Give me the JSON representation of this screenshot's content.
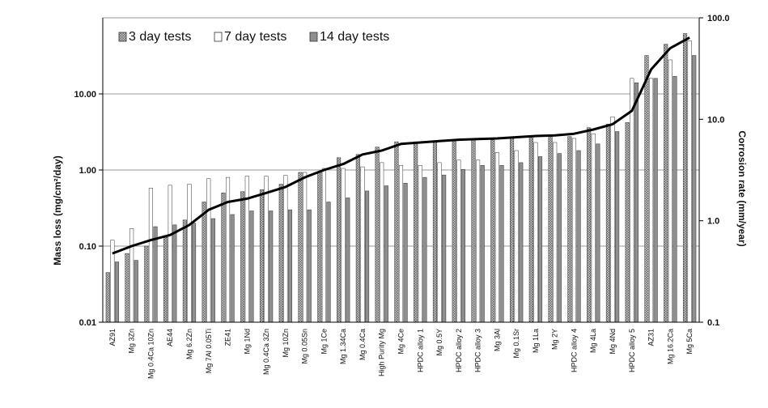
{
  "chart_data": {
    "type": "bar",
    "title": "",
    "ylabel": "Mass loss (mg/cm²/day)",
    "y2label": "Corrosion rate (mm/year)",
    "yscale": "log",
    "ylim": [
      0.01,
      100
    ],
    "y2lim": [
      0.1,
      100
    ],
    "yticks": [
      "0.01",
      "0.10",
      "1.00",
      "10.00"
    ],
    "y2ticks": [
      "0.1",
      "1.0",
      "10.0",
      "100.0"
    ],
    "grid": true,
    "legend_position": "top-left",
    "colors": {
      "series_3day": "#c8c8c8",
      "series_7day": "#ffffff",
      "series_14day": "#8f8f8f",
      "trend_line": "#000000"
    },
    "categories": [
      "AZ91",
      "Mg 3Zn",
      "Mg 0.4Ca 10Zn",
      "AE44",
      "Mg 6.2Zn",
      "Mg 7Al 0.05Ti",
      "ZE41",
      "Mg 1Nd",
      "Mg 0.4Ca 3Zn",
      "Mg 10Zn",
      "Mg 0.05Sn",
      "Mg 1Ce",
      "Mg 1.34Ca",
      "Mg 0.4Ca",
      "High Purity Mg",
      "Mg 4Ce",
      "HPDC alloy 1",
      "Mg 0.5Y",
      "HPDC alloy 2",
      "HPDC alloy 3",
      "Mg 3Al",
      "Mg 0.1Sr",
      "Mg 1La",
      "Mg 2Y",
      "HPDC alloy 4",
      "Mg 4La",
      "Mg 4Nd",
      "HPDC alloy 5",
      "AZ31",
      "Mg 16.2Ca",
      "Mg 5Ca"
    ],
    "series": [
      {
        "name": "3 day tests",
        "values": [
          0.045,
          0.08,
          0.1,
          0.13,
          0.22,
          0.38,
          0.5,
          0.52,
          0.55,
          0.65,
          0.93,
          0.95,
          1.45,
          1.6,
          2.0,
          2.35,
          2.35,
          2.4,
          2.45,
          2.5,
          2.5,
          2.6,
          2.7,
          2.75,
          2.75,
          3.6,
          4.0,
          4.2,
          32.0,
          45.0,
          62.0
        ]
      },
      {
        "name": "7 day tests",
        "values": [
          0.12,
          0.17,
          0.58,
          0.63,
          0.65,
          0.77,
          0.8,
          0.83,
          0.83,
          0.85,
          0.93,
          1.05,
          1.05,
          1.1,
          1.25,
          1.15,
          1.15,
          1.25,
          1.35,
          1.35,
          1.7,
          1.8,
          2.3,
          2.3,
          2.6,
          3.0,
          5.0,
          16.0,
          16.0,
          28.0,
          50.0
        ]
      },
      {
        "name": "14 day tests",
        "values": [
          0.062,
          0.065,
          0.18,
          0.19,
          0.2,
          0.23,
          0.26,
          0.29,
          0.29,
          0.3,
          0.3,
          0.38,
          0.43,
          0.53,
          0.62,
          0.67,
          0.8,
          0.86,
          1.02,
          1.15,
          1.15,
          1.25,
          1.5,
          1.65,
          1.8,
          2.2,
          3.2,
          14.0,
          16.0,
          17.0,
          32.0
        ]
      }
    ],
    "trend_line": [
      0.08,
      0.1,
      0.12,
      0.14,
      0.19,
      0.3,
      0.38,
      0.42,
      0.5,
      0.6,
      0.8,
      1.0,
      1.2,
      1.6,
      1.8,
      2.2,
      2.3,
      2.4,
      2.5,
      2.55,
      2.6,
      2.7,
      2.8,
      2.85,
      3.0,
      3.4,
      4.0,
      6.0,
      21.0,
      40.0,
      55.0
    ]
  }
}
